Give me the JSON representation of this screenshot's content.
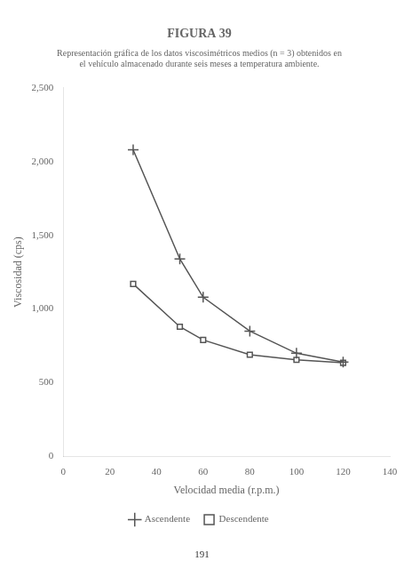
{
  "chart_data": {
    "type": "line",
    "title": "FIGURA 39",
    "subtitle": [
      "Representación gráfica de los datos viscosimétricos medios (n = 3) obtenidos en",
      "el vehículo almacenado durante seis meses a temperatura ambiente."
    ],
    "annotations": [
      "191"
    ],
    "x_label": "Velocidad media (r.p.m.)",
    "y_label": "Viscosidad (cps)",
    "x": [
      30,
      50,
      60,
      80,
      100,
      120
    ],
    "series": [
      {
        "name": "Ascendente",
        "color": "#555555",
        "marker": "plus",
        "line_style": "solid",
        "values": [
          2080,
          1340,
          1080,
          850,
          700,
          640
        ]
      },
      {
        "name": "Descendente",
        "color": "#555555",
        "marker": "square",
        "line_style": "solid",
        "values": [
          1170,
          880,
          790,
          690,
          655,
          635
        ]
      }
    ],
    "xlim": [
      0,
      140
    ],
    "xticks": [
      0,
      20,
      40,
      60,
      80,
      100,
      120,
      140
    ],
    "ylim": [
      0,
      2500
    ],
    "yticks": [
      0,
      500,
      1000,
      1500,
      2000,
      2500
    ],
    "grid": false,
    "legend": "bottom"
  }
}
